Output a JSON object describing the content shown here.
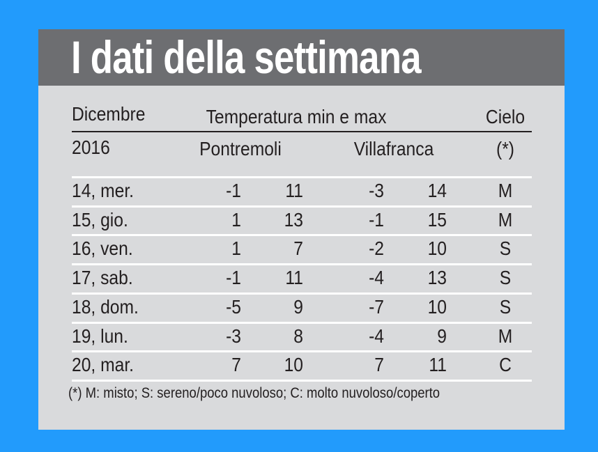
{
  "colors": {
    "background": "#229bfc",
    "header": "#6d6e71",
    "panel": "#d9dadc"
  },
  "title": "I dati della settimana",
  "headers": {
    "month": "Dicembre",
    "year": "2016",
    "temperature": "Temperatura min e max",
    "station1": "Pontremoli",
    "station2": "Villafranca",
    "sky": "Cielo",
    "sky_note": "(*)"
  },
  "chart_data": {
    "type": "table",
    "title": "I dati della settimana",
    "columns": [
      "Dicembre 2016",
      "Pontremoli min",
      "Pontremoli max",
      "Villafranca min",
      "Villafranca max",
      "Cielo (*)"
    ],
    "rows": [
      {
        "day": "14, mer.",
        "p_min": "-1",
        "p_max": "11",
        "v_min": "-3",
        "v_max": "14",
        "sky": "M"
      },
      {
        "day": "15, gio.",
        "p_min": "1",
        "p_max": "13",
        "v_min": "-1",
        "v_max": "15",
        "sky": "M"
      },
      {
        "day": "16, ven.",
        "p_min": "1",
        "p_max": "7",
        "v_min": "-2",
        "v_max": "10",
        "sky": "S"
      },
      {
        "day": "17, sab.",
        "p_min": "-1",
        "p_max": "11",
        "v_min": "-4",
        "v_max": "13",
        "sky": "S"
      },
      {
        "day": "18, dom.",
        "p_min": "-5",
        "p_max": "9",
        "v_min": "-7",
        "v_max": "10",
        "sky": "S"
      },
      {
        "day": "19, lun.",
        "p_min": "-3",
        "p_max": "8",
        "v_min": "-4",
        "v_max": "9",
        "sky": "M"
      },
      {
        "day": "20, mar.",
        "p_min": "7",
        "p_max": "10",
        "v_min": "7",
        "v_max": "11",
        "sky": "C"
      }
    ]
  },
  "footnote": "(*) M: misto; S: sereno/poco nuvoloso; C: molto nuvoloso/coperto"
}
